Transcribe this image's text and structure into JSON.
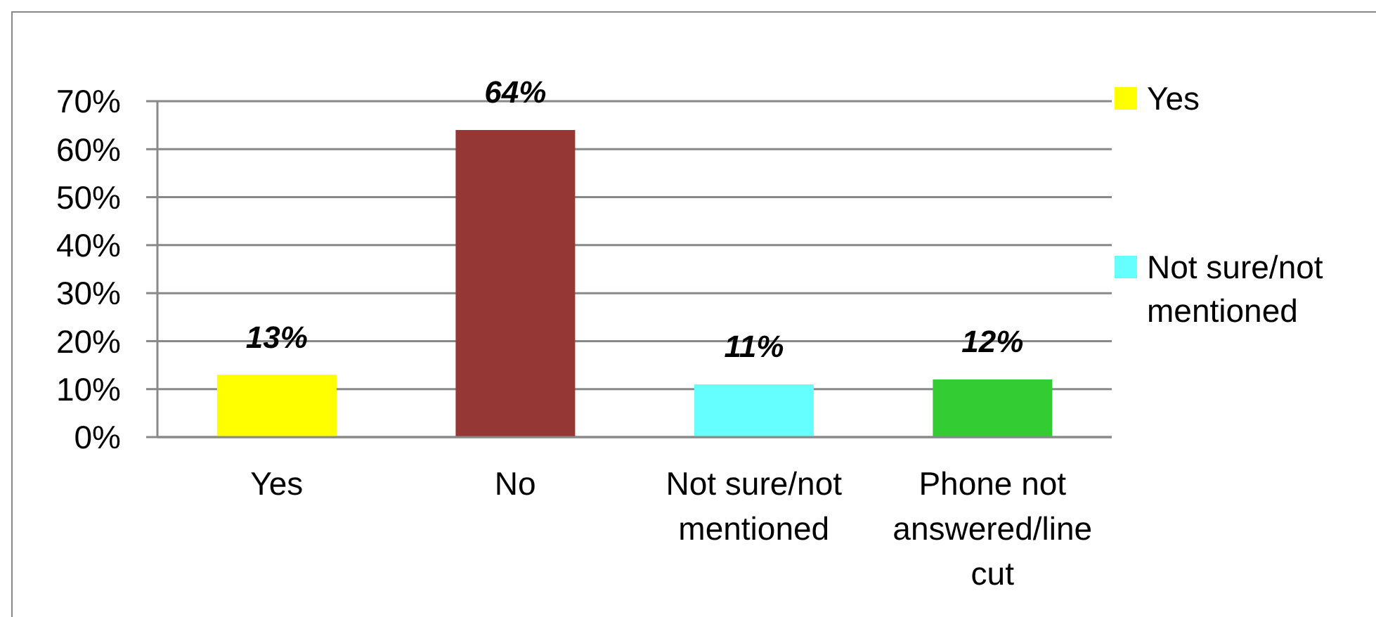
{
  "chart_data": {
    "type": "bar",
    "categories": [
      "Yes",
      "No",
      "Not sure/not mentioned",
      "Phone not answered/line cut"
    ],
    "series": [
      {
        "name": "Yes",
        "color": "#ffff00",
        "values": [
          13,
          null,
          null,
          null
        ],
        "value_labels": [
          "13%",
          null,
          null,
          null
        ]
      },
      {
        "color": "#953735",
        "values": [
          null,
          64,
          null,
          null
        ],
        "value_labels": [
          null,
          "64%",
          null,
          null
        ]
      },
      {
        "name": "Not sure/not mentioned",
        "color": "#66ffff",
        "values": [
          null,
          null,
          11,
          null
        ],
        "value_labels": [
          null,
          null,
          "11%",
          null
        ]
      },
      {
        "color": "#33cc33",
        "values": [
          null,
          null,
          null,
          12
        ],
        "value_labels": [
          null,
          null,
          null,
          "12%"
        ]
      }
    ],
    "stacked": true,
    "ylim": [
      0,
      70
    ],
    "yticks": [
      {
        "value": 0,
        "label": "0%"
      },
      {
        "value": 10,
        "label": "10%"
      },
      {
        "value": 20,
        "label": "20%"
      },
      {
        "value": 30,
        "label": "30%"
      },
      {
        "value": 40,
        "label": "40%"
      },
      {
        "value": 50,
        "label": "50%"
      },
      {
        "value": 60,
        "label": "60%"
      },
      {
        "value": 70,
        "label": "70%"
      }
    ],
    "grid": "y",
    "legend": "right"
  }
}
